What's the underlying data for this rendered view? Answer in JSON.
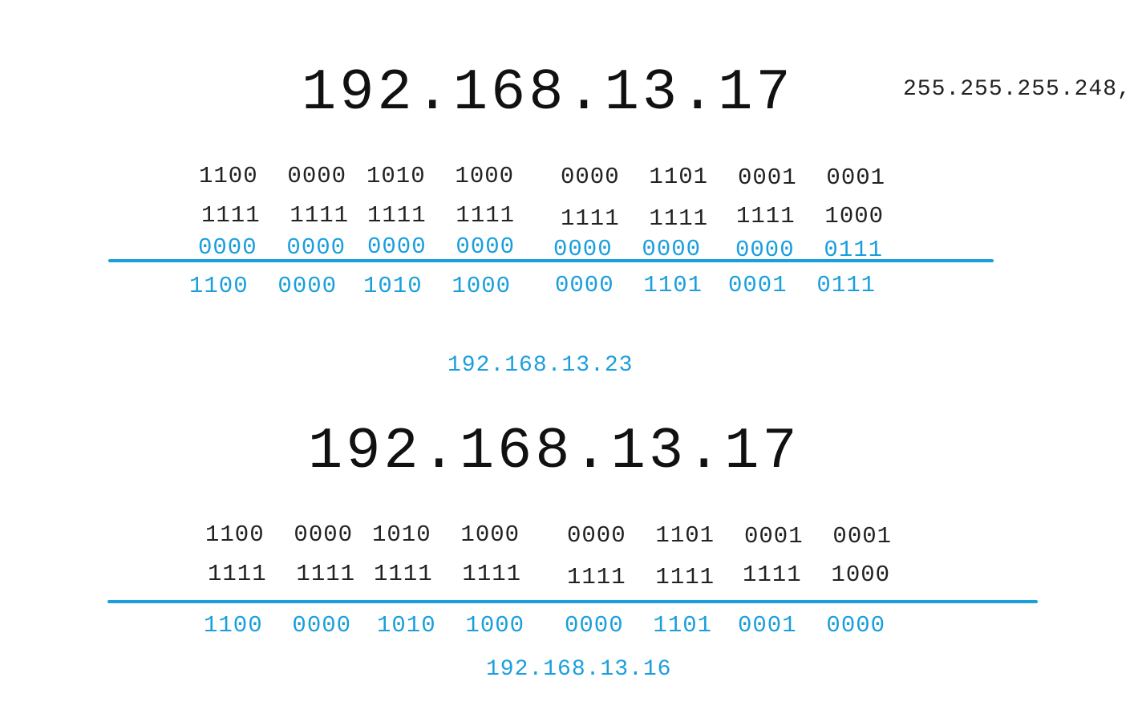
{
  "colors": {
    "ink": "#111111",
    "accent": "#1a9fdc"
  },
  "subnet_mask": "255.255.255.248,",
  "calc1": {
    "ip": "192.168.13.17",
    "ip_bin": [
      "1100  0000",
      "1010  1000",
      "0000  1101",
      "0001  0001"
    ],
    "mask_bin": [
      "1111  1111",
      "1111  1111",
      "1111  1111",
      "1111  1000"
    ],
    "inv_mask_bin": [
      "0000  0000",
      "0000  0000",
      "0000  0000",
      "0000  0111"
    ],
    "result_bin": [
      "1100  0000",
      "1010  1000",
      "0000  1101",
      "0001  0111"
    ],
    "result_ip": "192.168.13.23"
  },
  "calc2": {
    "ip": "192.168.13.17",
    "ip_bin": [
      "1100  0000",
      "1010  1000",
      "0000  1101",
      "0001  0001"
    ],
    "mask_bin": [
      "1111  1111",
      "1111  1111",
      "1111  1111",
      "1111  1000"
    ],
    "result_bin": [
      "1100  0000",
      "1010  1000",
      "0000  1101",
      "0001  0000"
    ],
    "result_ip": "192.168.13.16"
  }
}
